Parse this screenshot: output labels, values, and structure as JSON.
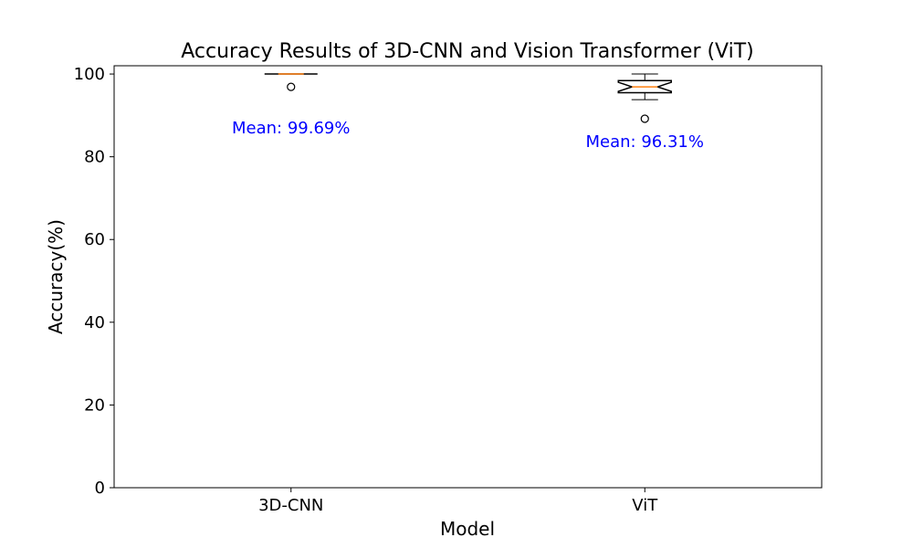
{
  "chart_data": {
    "type": "box",
    "title": "Accuracy Results of 3D-CNN and Vision Transformer (ViT)",
    "xlabel": "Model",
    "ylabel": "Accuracy(%)",
    "categories": [
      "3D-CNN",
      "ViT"
    ],
    "ylim": [
      0,
      102
    ],
    "yticks": [
      0,
      20,
      40,
      60,
      80,
      100
    ],
    "grid": false,
    "notched": true,
    "boxes": [
      {
        "name": "3D-CNN",
        "q1": 100,
        "median": 100,
        "q3": 100,
        "whisker_low": 100,
        "whisker_high": 100,
        "notch_low": 100,
        "notch_high": 100,
        "outliers": [
          96.9
        ],
        "mean_label": "Mean: 99.69%",
        "mean_label_y": 87
      },
      {
        "name": "ViT",
        "q1": 95.5,
        "median": 96.9,
        "q3": 98.4,
        "whisker_low": 93.8,
        "whisker_high": 100,
        "notch_low": 95.8,
        "notch_high": 98.0,
        "outliers": [
          89.2
        ],
        "mean_label": "Mean: 96.31%",
        "mean_label_y": 83.7
      }
    ],
    "colors": {
      "box": "#000000",
      "median": "#ff7f0e",
      "annotation": "#0000ff"
    }
  }
}
